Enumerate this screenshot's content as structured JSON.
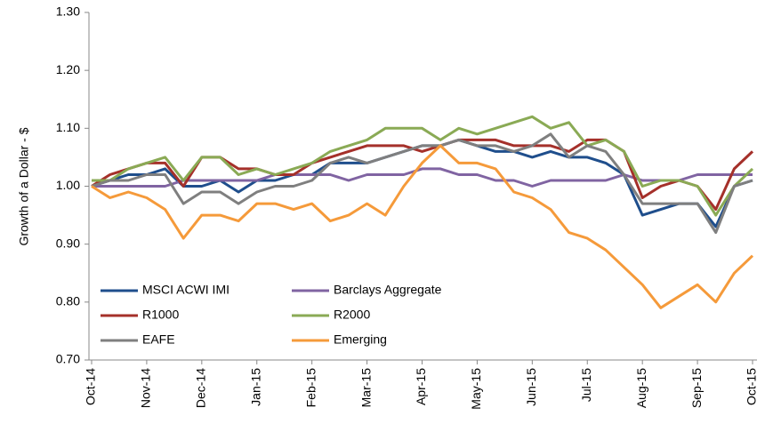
{
  "chart_data": {
    "type": "line",
    "y_label": "Growth of a Dollar - $",
    "categories": [
      "Oct-14",
      null,
      null,
      "Nov-14",
      null,
      null,
      "Dec-14",
      null,
      null,
      "Jan-15",
      null,
      null,
      "Feb-15",
      null,
      null,
      "Mar-15",
      null,
      null,
      "Apr-15",
      null,
      null,
      "May-15",
      null,
      null,
      "Jun-15",
      null,
      null,
      "Jul-15",
      null,
      null,
      "Aug-15",
      null,
      null,
      "Sep-15",
      null,
      null,
      "Oct-15"
    ],
    "ylim": [
      0.7,
      1.3
    ],
    "yticks": [
      {
        "value": 0.7,
        "label": "0.70"
      },
      {
        "value": 0.8,
        "label": "0.80"
      },
      {
        "value": 0.9,
        "label": "0.90"
      },
      {
        "value": 1.0,
        "label": "1.00"
      },
      {
        "value": 1.1,
        "label": "1.10"
      },
      {
        "value": 1.2,
        "label": "1.20"
      },
      {
        "value": 1.3,
        "label": "1.30"
      }
    ],
    "grid": false,
    "legend": "lower-left",
    "series": [
      {
        "name": "MSCI ACWI IMI",
        "color": "#1f4e8c",
        "values": [
          1.0,
          1.01,
          1.02,
          1.02,
          1.03,
          1.0,
          1.0,
          1.01,
          0.99,
          1.01,
          1.01,
          1.02,
          1.02,
          1.04,
          1.04,
          1.04,
          1.05,
          1.06,
          1.07,
          1.07,
          1.08,
          1.07,
          1.06,
          1.06,
          1.05,
          1.06,
          1.05,
          1.05,
          1.04,
          1.02,
          0.95,
          0.96,
          0.97,
          0.97,
          0.93,
          1.0,
          1.01
        ]
      },
      {
        "name": "Barclays Aggregate",
        "color": "#8064a2",
        "values": [
          1.0,
          1.0,
          1.0,
          1.0,
          1.0,
          1.01,
          1.01,
          1.01,
          1.01,
          1.01,
          1.02,
          1.02,
          1.02,
          1.02,
          1.01,
          1.02,
          1.02,
          1.02,
          1.03,
          1.03,
          1.02,
          1.02,
          1.01,
          1.01,
          1.0,
          1.01,
          1.01,
          1.01,
          1.01,
          1.02,
          1.01,
          1.01,
          1.01,
          1.02,
          1.02,
          1.02,
          1.02
        ]
      },
      {
        "name": "R1000",
        "color": "#a5302a",
        "values": [
          1.0,
          1.02,
          1.03,
          1.04,
          1.04,
          1.0,
          1.05,
          1.05,
          1.03,
          1.03,
          1.02,
          1.02,
          1.04,
          1.05,
          1.06,
          1.07,
          1.07,
          1.07,
          1.06,
          1.07,
          1.08,
          1.08,
          1.08,
          1.07,
          1.07,
          1.07,
          1.06,
          1.08,
          1.08,
          1.06,
          0.98,
          1.0,
          1.01,
          1.0,
          0.96,
          1.03,
          1.06
        ]
      },
      {
        "name": "R2000",
        "color": "#8aaa55",
        "values": [
          1.01,
          1.01,
          1.03,
          1.04,
          1.05,
          1.01,
          1.05,
          1.05,
          1.02,
          1.03,
          1.02,
          1.03,
          1.04,
          1.06,
          1.07,
          1.08,
          1.1,
          1.1,
          1.1,
          1.08,
          1.1,
          1.09,
          1.1,
          1.11,
          1.12,
          1.1,
          1.11,
          1.07,
          1.08,
          1.06,
          1.0,
          1.01,
          1.01,
          1.0,
          0.95,
          1.0,
          1.03
        ]
      },
      {
        "name": "EAFE",
        "color": "#7f7f7f",
        "values": [
          1.0,
          1.01,
          1.01,
          1.02,
          1.02,
          0.97,
          0.99,
          0.99,
          0.97,
          0.99,
          1.0,
          1.0,
          1.01,
          1.04,
          1.05,
          1.04,
          1.05,
          1.06,
          1.07,
          1.07,
          1.08,
          1.07,
          1.07,
          1.06,
          1.07,
          1.09,
          1.05,
          1.07,
          1.06,
          1.02,
          0.97,
          0.97,
          0.97,
          0.97,
          0.92,
          1.0,
          1.01
        ]
      },
      {
        "name": "Emerging",
        "color": "#f59a3a",
        "values": [
          1.0,
          0.98,
          0.99,
          0.98,
          0.96,
          0.91,
          0.95,
          0.95,
          0.94,
          0.97,
          0.97,
          0.96,
          0.97,
          0.94,
          0.95,
          0.97,
          0.95,
          1.0,
          1.04,
          1.07,
          1.04,
          1.04,
          1.03,
          0.99,
          0.98,
          0.96,
          0.92,
          0.91,
          0.89,
          0.86,
          0.83,
          0.79,
          0.81,
          0.83,
          0.8,
          0.85,
          0.88
        ]
      }
    ]
  }
}
